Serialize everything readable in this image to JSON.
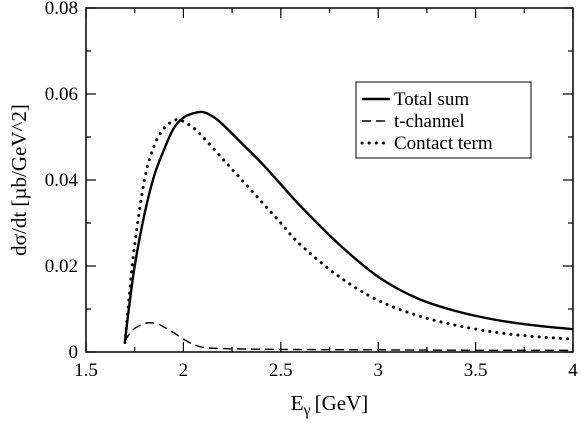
{
  "chart_data": {
    "type": "line",
    "title": "",
    "xlabel_main": "E",
    "xlabel_sub": "γ",
    "xlabel_unit": "[GeV]",
    "ylabel": "dσ/dt [µb/GeV^2]",
    "xlim": [
      1.5,
      4.0
    ],
    "ylim": [
      0.0,
      0.08
    ],
    "xticks": [
      1.5,
      2.0,
      2.5,
      3.0,
      3.5,
      4.0
    ],
    "xtick_labels": [
      "1.5",
      "2",
      "2.5",
      "3",
      "3.5",
      "4"
    ],
    "yticks": [
      0.0,
      0.02,
      0.04,
      0.06,
      0.08
    ],
    "ytick_labels": [
      "0",
      "0.02",
      "0.04",
      "0.06",
      "0.08"
    ],
    "grid": false,
    "legend_position": "top-right",
    "series": [
      {
        "name": "Total sum",
        "style": "solid",
        "x": [
          1.7,
          1.72,
          1.75,
          1.8,
          1.85,
          1.9,
          1.95,
          2.0,
          2.05,
          2.1,
          2.15,
          2.2,
          2.3,
          2.4,
          2.5,
          2.6,
          2.8,
          3.0,
          3.2,
          3.4,
          3.6,
          3.8,
          4.0
        ],
        "y": [
          0.0025,
          0.01,
          0.02,
          0.032,
          0.041,
          0.047,
          0.052,
          0.0545,
          0.0555,
          0.0558,
          0.0548,
          0.053,
          0.0485,
          0.044,
          0.039,
          0.034,
          0.025,
          0.0175,
          0.0125,
          0.0095,
          0.0075,
          0.0062,
          0.0053
        ]
      },
      {
        "name": "t-channel",
        "style": "dashed",
        "x": [
          1.7,
          1.72,
          1.75,
          1.8,
          1.83,
          1.87,
          1.9,
          1.95,
          2.0,
          2.05,
          2.1,
          2.2,
          2.5,
          3.0,
          3.5,
          4.0
        ],
        "y": [
          0.0025,
          0.004,
          0.0055,
          0.0066,
          0.0068,
          0.0065,
          0.0058,
          0.0045,
          0.003,
          0.0018,
          0.0011,
          0.0008,
          0.0006,
          0.0005,
          0.0004,
          0.0004
        ]
      },
      {
        "name": "Contact term",
        "style": "dotted",
        "x": [
          1.7,
          1.72,
          1.75,
          1.8,
          1.85,
          1.9,
          1.95,
          1.98,
          2.0,
          2.05,
          2.1,
          2.2,
          2.3,
          2.4,
          2.5,
          2.6,
          2.8,
          3.0,
          3.2,
          3.4,
          3.6,
          3.8,
          4.0
        ],
        "y": [
          0.0022,
          0.012,
          0.025,
          0.04,
          0.048,
          0.052,
          0.0538,
          0.054,
          0.0536,
          0.0522,
          0.05,
          0.045,
          0.04,
          0.035,
          0.03,
          0.025,
          0.0175,
          0.012,
          0.0085,
          0.0062,
          0.0046,
          0.0036,
          0.003
        ]
      }
    ]
  }
}
